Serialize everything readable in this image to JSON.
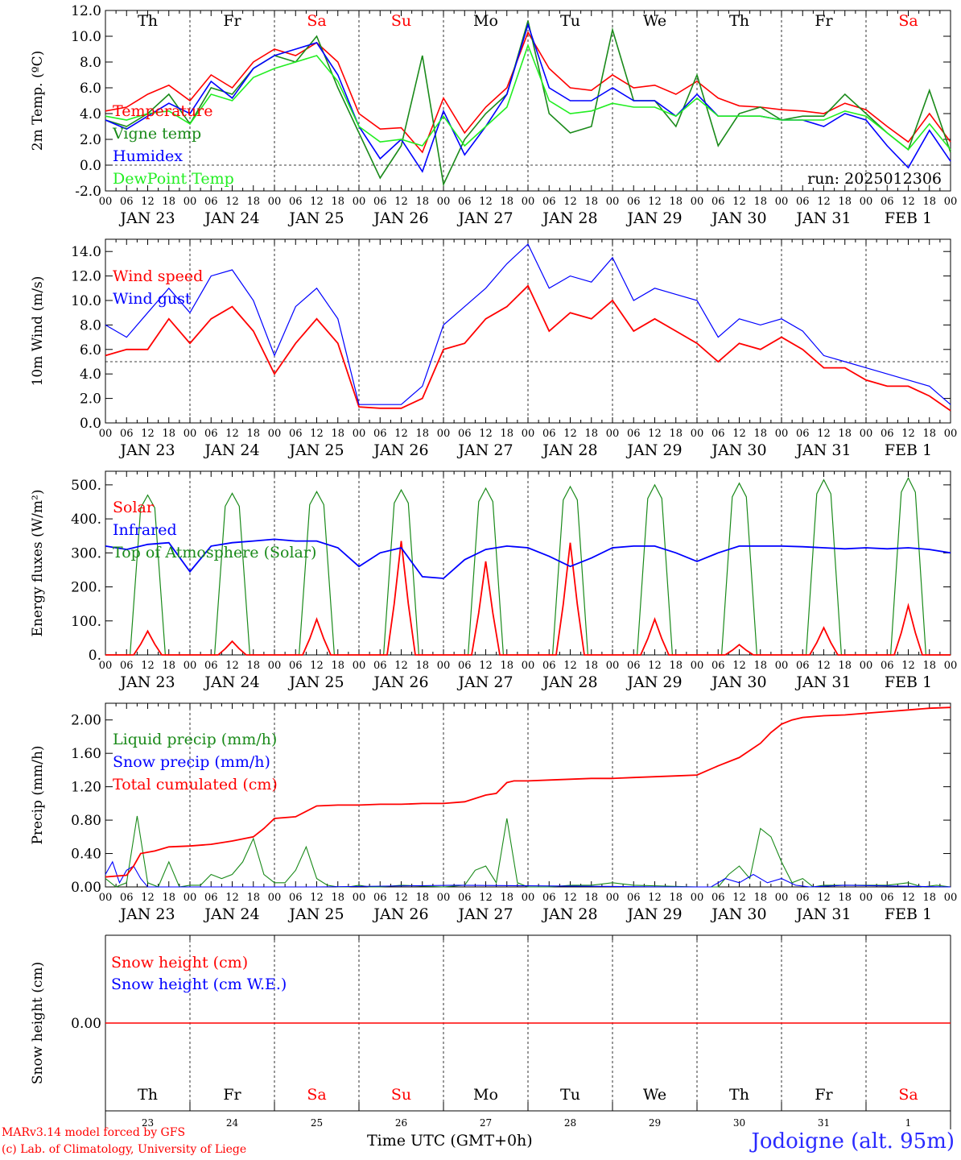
{
  "credits": [
    "MARv3.14 model forced by GFS",
    "(c) Lab. of Climatology, University of Liege"
  ],
  "station": "Jodoigne (alt. 95m)",
  "x_title": "Time UTC (GMT+0h)",
  "colors": {
    "red": "#ff0000",
    "green": "#00a000",
    "dark_green": "#1a8a1a",
    "blue": "#0000ff",
    "light_green": "#22ee22",
    "weekend": "#ff0000",
    "weekday": "#000000"
  },
  "chart_data": [
    {
      "type": "line",
      "ylabel": "2m Temp. (ºC)",
      "ylim": [
        -2,
        12
      ],
      "yticks": [
        "-2.0",
        "0.0",
        "2.0",
        "4.0",
        "6.0",
        "8.0",
        "10.0",
        "12.0"
      ],
      "hline": 0,
      "run_label": "run: 2025012306",
      "day_names": [
        "Th",
        "Fr",
        "Sa",
        "Su",
        "Mo",
        "Tu",
        "We",
        "Th",
        "Fr",
        "Sa"
      ],
      "x_hour_ticks": [
        "00",
        "06",
        "12",
        "18"
      ],
      "date_labels": [
        "JAN 23",
        "JAN 24",
        "JAN 25",
        "JAN 26",
        "JAN 27",
        "JAN 28",
        "JAN 29",
        "JAN 30",
        "JAN 31",
        "FEB  1"
      ],
      "series": [
        {
          "name": "Temperature",
          "color": "#ff0000",
          "x": [
            0,
            6,
            12,
            18,
            24,
            30,
            36,
            42,
            48,
            54,
            60,
            66,
            72,
            78,
            84,
            90,
            96,
            102,
            108,
            114,
            120,
            126,
            132,
            138,
            144,
            150,
            156,
            162,
            168,
            174,
            180,
            186,
            192,
            198,
            204,
            210,
            216,
            222,
            228,
            234,
            240
          ],
          "values": [
            4.2,
            4.5,
            5.5,
            6.2,
            5.0,
            7.0,
            6.0,
            8.0,
            9.0,
            8.5,
            9.5,
            8.0,
            4.0,
            2.8,
            2.9,
            1.0,
            5.2,
            2.5,
            4.5,
            6.0,
            10.3,
            7.5,
            6.0,
            5.8,
            7.0,
            6.0,
            6.2,
            5.5,
            6.5,
            5.2,
            4.6,
            4.5,
            4.3,
            4.2,
            4.0,
            4.8,
            4.3,
            3.0,
            1.8,
            4.0,
            1.8
          ]
        },
        {
          "name": "Vigne temp",
          "color": "#1a8a1a",
          "x": [
            0,
            6,
            12,
            18,
            24,
            30,
            36,
            42,
            48,
            54,
            60,
            66,
            72,
            78,
            84,
            90,
            96,
            102,
            108,
            114,
            120,
            126,
            132,
            138,
            144,
            150,
            156,
            162,
            168,
            174,
            180,
            186,
            192,
            198,
            204,
            210,
            216,
            222,
            228,
            234,
            240
          ],
          "values": [
            3.5,
            3.0,
            4.0,
            5.5,
            3.2,
            6.0,
            5.5,
            7.5,
            8.5,
            8.0,
            10.0,
            6.0,
            2.5,
            -1.0,
            1.5,
            8.5,
            -1.5,
            2.0,
            4.0,
            5.5,
            11.2,
            4.0,
            2.5,
            3.0,
            10.5,
            5.0,
            5.0,
            3.0,
            7.0,
            1.5,
            4.0,
            4.5,
            3.5,
            3.8,
            3.8,
            5.5,
            4.0,
            2.5,
            1.2,
            5.8,
            1.0
          ]
        },
        {
          "name": "Humidex",
          "color": "#0000ff",
          "x": [
            0,
            6,
            12,
            18,
            24,
            30,
            36,
            42,
            48,
            54,
            60,
            66,
            72,
            78,
            84,
            90,
            96,
            102,
            108,
            114,
            120,
            126,
            132,
            138,
            144,
            150,
            156,
            162,
            168,
            174,
            180,
            186,
            192,
            198,
            204,
            210,
            216,
            222,
            228,
            234,
            240
          ],
          "values": [
            3.5,
            2.8,
            3.8,
            4.8,
            4.0,
            6.5,
            5.2,
            7.5,
            8.5,
            9.0,
            9.5,
            7.0,
            3.0,
            0.5,
            2.0,
            -0.5,
            4.2,
            0.8,
            3.0,
            5.5,
            10.9,
            6.0,
            5.0,
            5.0,
            6.0,
            5.0,
            5.0,
            3.8,
            5.5,
            3.8,
            3.8,
            3.8,
            3.5,
            3.5,
            3.0,
            4.0,
            3.5,
            1.5,
            -0.2,
            2.7,
            0.3
          ]
        },
        {
          "name": "DewPoint Temp",
          "color": "#22ee22",
          "x": [
            0,
            6,
            12,
            18,
            24,
            30,
            36,
            42,
            48,
            54,
            60,
            66,
            72,
            78,
            84,
            90,
            96,
            102,
            108,
            114,
            120,
            126,
            132,
            138,
            144,
            150,
            156,
            162,
            168,
            174,
            180,
            186,
            192,
            198,
            204,
            210,
            216,
            222,
            228,
            234,
            240
          ],
          "values": [
            3.8,
            3.5,
            4.0,
            4.2,
            3.2,
            5.5,
            5.0,
            6.8,
            7.5,
            8.0,
            8.5,
            6.5,
            3.0,
            1.8,
            2.0,
            1.5,
            3.8,
            1.5,
            3.0,
            4.5,
            9.3,
            5.0,
            4.0,
            4.2,
            4.8,
            4.5,
            4.5,
            3.8,
            5.2,
            3.8,
            3.8,
            3.8,
            3.5,
            3.5,
            3.5,
            4.2,
            3.8,
            2.5,
            1.2,
            3.2,
            1.2
          ]
        }
      ]
    },
    {
      "type": "line",
      "ylabel": "10m Wind (m/s)",
      "ylim": [
        0,
        15
      ],
      "yticks": [
        "0.0",
        "2.0",
        "4.0",
        "6.0",
        "8.0",
        "10.0",
        "12.0",
        "14.0"
      ],
      "hline": 5,
      "date_labels": [
        "JAN 23",
        "JAN 24",
        "JAN 25",
        "JAN 26",
        "JAN 27",
        "JAN 28",
        "JAN 29",
        "JAN 30",
        "JAN 31",
        "FEB  1"
      ],
      "series": [
        {
          "name": "Wind speed",
          "color": "#ff0000",
          "x": [
            0,
            6,
            12,
            18,
            24,
            30,
            36,
            42,
            48,
            54,
            60,
            66,
            72,
            78,
            84,
            90,
            96,
            102,
            108,
            114,
            120,
            126,
            132,
            138,
            144,
            150,
            156,
            162,
            168,
            174,
            180,
            186,
            192,
            198,
            204,
            210,
            216,
            222,
            228,
            234,
            240
          ],
          "values": [
            5.5,
            6.0,
            6.0,
            8.5,
            6.5,
            8.5,
            9.5,
            7.5,
            4.0,
            6.5,
            8.5,
            6.5,
            1.3,
            1.2,
            1.2,
            2.0,
            6.0,
            6.5,
            8.5,
            9.5,
            11.2,
            7.5,
            9.0,
            8.5,
            10.0,
            7.5,
            8.5,
            7.5,
            6.5,
            5.0,
            6.5,
            6.0,
            7.0,
            6.0,
            4.5,
            4.5,
            3.5,
            3.0,
            3.0,
            2.2,
            1.0
          ]
        },
        {
          "name": "Wind gust",
          "color": "#0000ff",
          "x": [
            0,
            6,
            12,
            18,
            24,
            30,
            36,
            42,
            48,
            54,
            60,
            66,
            72,
            78,
            84,
            90,
            96,
            102,
            108,
            114,
            120,
            126,
            132,
            138,
            144,
            150,
            156,
            162,
            168,
            174,
            180,
            186,
            192,
            198,
            204,
            210,
            216,
            222,
            228,
            234,
            240
          ],
          "values": [
            8.0,
            7.0,
            9.0,
            11.0,
            9.0,
            12.0,
            12.5,
            10.0,
            5.5,
            9.5,
            11.0,
            8.5,
            1.5,
            1.5,
            1.5,
            3.0,
            8.0,
            9.5,
            11.0,
            13.0,
            14.6,
            11.0,
            12.0,
            11.5,
            13.5,
            10.0,
            11.0,
            10.5,
            10.0,
            7.0,
            8.5,
            8.0,
            8.5,
            7.5,
            5.5,
            5.0,
            4.5,
            4.0,
            3.5,
            3.0,
            1.5
          ]
        }
      ]
    },
    {
      "type": "line",
      "ylabel": "Energy fluxes (W/m²)",
      "ylim": [
        0,
        540
      ],
      "yticks": [
        "0.",
        "100.",
        "200.",
        "300.",
        "400.",
        "500."
      ],
      "date_labels": [
        "JAN 23",
        "JAN 24",
        "JAN 25",
        "JAN 26",
        "JAN 27",
        "JAN 28",
        "JAN 29",
        "JAN 30",
        "JAN 31",
        "FEB  1"
      ],
      "series": [
        {
          "name": "Solar",
          "color": "#ff0000",
          "daily_peaks": [
            70,
            40,
            105,
            335,
            275,
            330,
            105,
            30,
            80,
            145
          ]
        },
        {
          "name": "Infrared",
          "color": "#0000ff",
          "x": [
            0,
            6,
            12,
            18,
            24,
            30,
            36,
            42,
            48,
            54,
            60,
            66,
            72,
            78,
            84,
            90,
            96,
            102,
            108,
            114,
            120,
            126,
            132,
            138,
            144,
            150,
            156,
            162,
            168,
            174,
            180,
            186,
            192,
            198,
            204,
            210,
            216,
            222,
            228,
            234,
            240
          ],
          "values": [
            320,
            310,
            325,
            330,
            245,
            320,
            330,
            335,
            340,
            335,
            335,
            315,
            260,
            300,
            315,
            230,
            225,
            280,
            310,
            320,
            315,
            290,
            260,
            285,
            315,
            320,
            320,
            300,
            275,
            300,
            320,
            320,
            320,
            318,
            315,
            312,
            315,
            312,
            315,
            310,
            300
          ]
        },
        {
          "name": "Top of Atmosphere (Solar)",
          "color": "#1a8a1a",
          "daily_peaks": [
            470,
            475,
            480,
            485,
            490,
            495,
            500,
            505,
            515,
            520
          ]
        }
      ]
    },
    {
      "type": "line",
      "ylabel": "Precip (mm/h)",
      "ylim": [
        0,
        2.2
      ],
      "yticks": [
        "0.00",
        "0.40",
        "0.80",
        "1.20",
        "1.60",
        "2.00"
      ],
      "date_labels": [
        "JAN 23",
        "JAN 24",
        "JAN 25",
        "JAN 26",
        "JAN 27",
        "JAN 28",
        "JAN 29",
        "JAN 30",
        "JAN 31",
        "FEB  1"
      ],
      "series": [
        {
          "name": "Liquid precip (mm/h)",
          "color": "#1a8a1a",
          "x": [
            0,
            3,
            6,
            9,
            12,
            15,
            18,
            21,
            24,
            27,
            30,
            33,
            36,
            39,
            42,
            45,
            48,
            51,
            54,
            57,
            60,
            63,
            66,
            69,
            72,
            75,
            78,
            84,
            96,
            102,
            105,
            108,
            111,
            114,
            117,
            120,
            123,
            126,
            132,
            138,
            144,
            150,
            168,
            174,
            177,
            180,
            183,
            186,
            189,
            192,
            195,
            198,
            201,
            204,
            210,
            216,
            222,
            228,
            232,
            236,
            240
          ],
          "values": [
            0.1,
            0.0,
            0.05,
            0.85,
            0.05,
            0.0,
            0.3,
            0.0,
            0.02,
            0.02,
            0.15,
            0.1,
            0.15,
            0.3,
            0.58,
            0.15,
            0.05,
            0.05,
            0.2,
            0.48,
            0.1,
            0.02,
            0.0,
            0.0,
            0.02,
            0.0,
            0.0,
            0.02,
            0.0,
            0.02,
            0.2,
            0.25,
            0.05,
            0.82,
            0.05,
            0.0,
            0.0,
            0.0,
            0.02,
            0.02,
            0.05,
            0.02,
            0.0,
            0.0,
            0.15,
            0.25,
            0.1,
            0.7,
            0.6,
            0.3,
            0.05,
            0.1,
            0.0,
            0.02,
            0.02,
            0.02,
            0.02,
            0.05,
            0.0,
            0.02,
            0.0
          ]
        },
        {
          "name": "Snow precip (mm/h)",
          "color": "#0000ff",
          "x": [
            0,
            2,
            4,
            6,
            8,
            10,
            12,
            14,
            16,
            18,
            24,
            60,
            100,
            160,
            172,
            176,
            180,
            184,
            188,
            192,
            196,
            200,
            210,
            240
          ],
          "values": [
            0.15,
            0.3,
            0.05,
            0.2,
            0.25,
            0.1,
            0.0,
            0.0,
            0.0,
            0.0,
            0.0,
            0.0,
            0.02,
            0.0,
            0.0,
            0.1,
            0.05,
            0.15,
            0.05,
            0.1,
            0.02,
            0.0,
            0.02,
            0.0
          ]
        },
        {
          "name": "Total cumulated (cm)",
          "color": "#ff0000",
          "x": [
            0,
            6,
            8,
            10,
            14,
            18,
            24,
            30,
            36,
            42,
            45,
            48,
            54,
            60,
            66,
            72,
            78,
            84,
            90,
            96,
            102,
            108,
            111,
            114,
            116,
            120,
            126,
            132,
            138,
            144,
            150,
            156,
            162,
            168,
            174,
            180,
            186,
            189,
            192,
            195,
            198,
            204,
            210,
            216,
            222,
            228,
            234,
            240
          ],
          "values": [
            0.12,
            0.14,
            0.25,
            0.4,
            0.43,
            0.48,
            0.49,
            0.51,
            0.55,
            0.6,
            0.7,
            0.82,
            0.84,
            0.97,
            0.98,
            0.98,
            0.99,
            0.99,
            1.0,
            1.0,
            1.02,
            1.1,
            1.12,
            1.25,
            1.27,
            1.27,
            1.28,
            1.29,
            1.3,
            1.3,
            1.31,
            1.32,
            1.33,
            1.34,
            1.45,
            1.55,
            1.72,
            1.85,
            1.95,
            2.0,
            2.03,
            2.05,
            2.06,
            2.08,
            2.1,
            2.12,
            2.14,
            2.15
          ]
        }
      ]
    },
    {
      "type": "line",
      "ylabel": "Snow height (cm)",
      "ytick": "0.00",
      "day_names": [
        "Th",
        "Fr",
        "Sa",
        "Su",
        "Mo",
        "Tu",
        "We",
        "Th",
        "Fr",
        "Sa"
      ],
      "day_numbers": [
        "23",
        "24",
        "25",
        "26",
        "27",
        "28",
        "29",
        "30",
        "31",
        "1"
      ],
      "series": [
        {
          "name": "Snow height (cm)",
          "color": "#ff0000",
          "x": [
            0,
            240
          ],
          "values": [
            0,
            0
          ]
        },
        {
          "name": "Snow height (cm W.E.)",
          "color": "#0000ff",
          "x": [],
          "values": []
        }
      ]
    }
  ]
}
